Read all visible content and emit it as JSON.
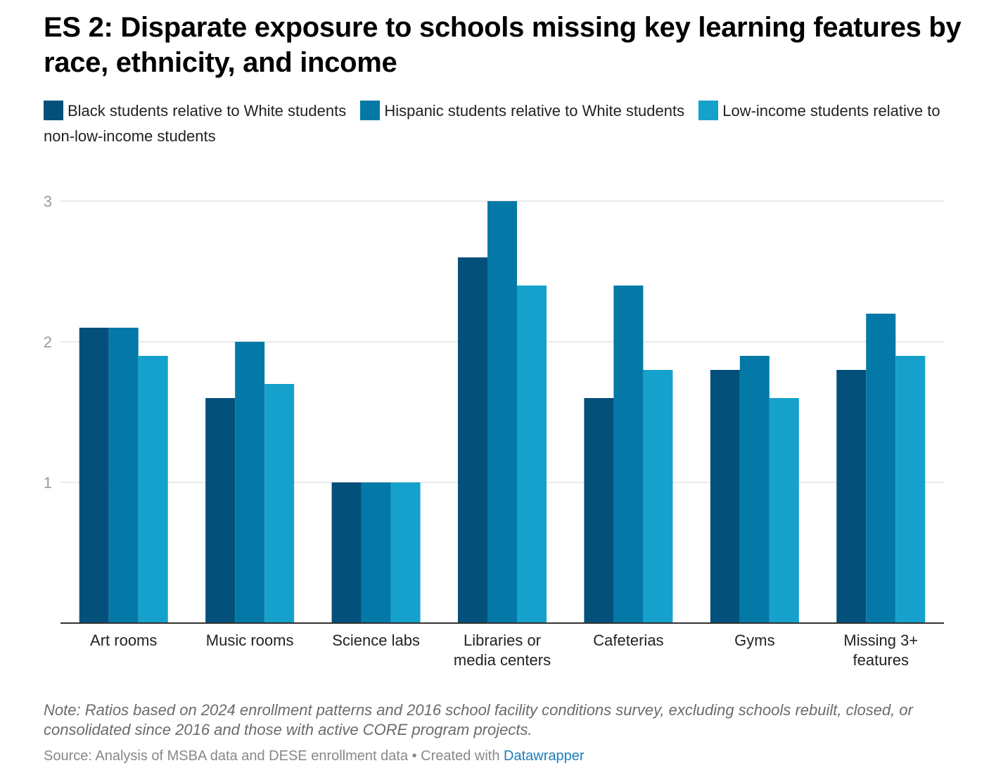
{
  "title": "ES 2: Disparate exposure to schools missing key learning features by race, ethnicity, and income",
  "colors": {
    "series1": "#03507a",
    "series2": "#0479a7",
    "series3": "#16a1cc"
  },
  "legend": [
    {
      "label": "Black students relative to White students"
    },
    {
      "label": "Hispanic students relative to White students"
    },
    {
      "label": "Low-income students relative to non-low-income students"
    }
  ],
  "chart_data": {
    "type": "bar",
    "title": "ES 2: Disparate exposure to schools missing key learning features by race, ethnicity, and income",
    "xlabel": "",
    "ylabel": "",
    "ylim": [
      0,
      3
    ],
    "yticks": [
      "1",
      "2",
      "3"
    ],
    "grid": true,
    "legend_position": "top",
    "categories": [
      [
        "Art rooms"
      ],
      [
        "Music rooms"
      ],
      [
        "Science labs"
      ],
      [
        "Libraries or",
        "media centers"
      ],
      [
        "Cafeterias"
      ],
      [
        "Gyms"
      ],
      [
        "Missing 3+",
        "features"
      ]
    ],
    "series": [
      {
        "name": "Black students relative to White students",
        "values": [
          2.1,
          1.6,
          1.0,
          2.6,
          1.6,
          1.8,
          1.8
        ]
      },
      {
        "name": "Hispanic students relative to White students",
        "values": [
          2.1,
          2.0,
          1.0,
          3.0,
          2.4,
          1.9,
          2.2
        ]
      },
      {
        "name": "Low-income students relative to non-low-income students",
        "values": [
          1.9,
          1.7,
          1.0,
          2.4,
          1.8,
          1.6,
          1.9
        ]
      }
    ]
  },
  "note": "Note: Ratios based on 2024 enrollment patterns and 2016 school facility conditions survey, excluding schools rebuilt, closed, or consolidated since 2016 and those with active CORE program projects.",
  "source": {
    "text": "Source: Analysis of MSBA data and DESE enrollment data • Created with ",
    "link": "Datawrapper"
  }
}
